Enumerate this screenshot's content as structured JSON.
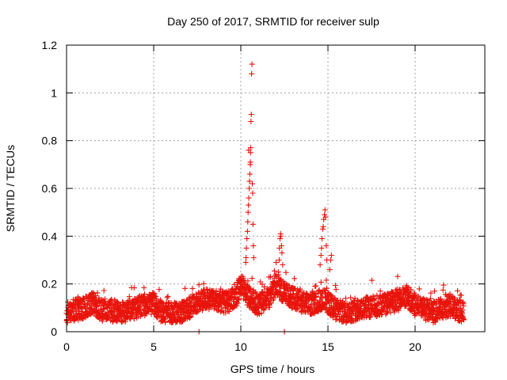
{
  "chart_data": {
    "type": "scatter",
    "title": "Day 250 of 2017, SRMTID for receiver sulp",
    "xlabel": "GPS time / hours",
    "ylabel": "SRMTID / TECUs",
    "xlim": [
      0,
      24
    ],
    "ylim": [
      0,
      1.2
    ],
    "x_ticks": [
      0,
      5,
      10,
      15,
      20
    ],
    "x_tick_labels": [
      "0",
      "5",
      "10",
      "15",
      "20"
    ],
    "y_ticks": [
      0,
      0.2,
      0.4,
      0.6,
      0.8,
      1,
      1.2
    ],
    "y_tick_labels": [
      "0",
      "0.2",
      "0.4",
      "0.6",
      "0.8",
      "1",
      "1.2"
    ],
    "grid": true,
    "marker": "+",
    "color": "#e8140c",
    "series": [
      {
        "name": "SRMTID",
        "baseline_profile": [
          [
            0,
            0.08
          ],
          [
            0.5,
            0.09
          ],
          [
            1,
            0.1
          ],
          [
            1.5,
            0.12
          ],
          [
            2,
            0.09
          ],
          [
            3,
            0.08
          ],
          [
            4,
            0.1
          ],
          [
            5,
            0.12
          ],
          [
            5.5,
            0.08
          ],
          [
            6.5,
            0.08
          ],
          [
            7,
            0.1
          ],
          [
            7.5,
            0.12
          ],
          [
            8,
            0.14
          ],
          [
            9,
            0.12
          ],
          [
            9.7,
            0.14
          ],
          [
            10,
            0.2
          ],
          [
            10.3,
            0.16
          ],
          [
            11,
            0.11
          ],
          [
            11.7,
            0.15
          ],
          [
            12,
            0.2
          ],
          [
            12.5,
            0.16
          ],
          [
            13,
            0.14
          ],
          [
            14,
            0.11
          ],
          [
            14.7,
            0.14
          ],
          [
            15,
            0.12
          ],
          [
            15.5,
            0.09
          ],
          [
            16,
            0.08
          ],
          [
            17,
            0.1
          ],
          [
            18,
            0.11
          ],
          [
            19,
            0.13
          ],
          [
            19.5,
            0.15
          ],
          [
            20,
            0.11
          ],
          [
            21,
            0.08
          ],
          [
            22,
            0.11
          ],
          [
            22.5,
            0.09
          ],
          [
            22.8,
            0.08
          ]
        ],
        "peaks": [
          {
            "x": 10.28,
            "y": 0.29
          },
          {
            "x": 10.3,
            "y": 0.31
          },
          {
            "x": 10.32,
            "y": 0.35
          },
          {
            "x": 10.35,
            "y": 0.39
          },
          {
            "x": 10.38,
            "y": 0.42
          },
          {
            "x": 10.4,
            "y": 0.46
          },
          {
            "x": 10.42,
            "y": 0.5
          },
          {
            "x": 10.44,
            "y": 0.53
          },
          {
            "x": 10.46,
            "y": 0.56
          },
          {
            "x": 10.48,
            "y": 0.6
          },
          {
            "x": 10.5,
            "y": 0.63
          },
          {
            "x": 10.52,
            "y": 0.66
          },
          {
            "x": 10.54,
            "y": 0.7
          },
          {
            "x": 10.55,
            "y": 0.71
          },
          {
            "x": 10.56,
            "y": 0.75
          },
          {
            "x": 10.57,
            "y": 0.77
          },
          {
            "x": 10.58,
            "y": 0.88
          },
          {
            "x": 10.6,
            "y": 0.91
          },
          {
            "x": 10.62,
            "y": 1.08
          },
          {
            "x": 10.64,
            "y": 1.12
          },
          {
            "x": 10.66,
            "y": 0.62
          },
          {
            "x": 10.68,
            "y": 0.58
          },
          {
            "x": 10.7,
            "y": 0.45
          },
          {
            "x": 10.72,
            "y": 0.36
          },
          {
            "x": 10.74,
            "y": 0.31
          },
          {
            "x": 10.45,
            "y": 0.76
          },
          {
            "x": 12.15,
            "y": 0.25
          },
          {
            "x": 12.2,
            "y": 0.3
          },
          {
            "x": 12.22,
            "y": 0.35
          },
          {
            "x": 12.25,
            "y": 0.39
          },
          {
            "x": 12.28,
            "y": 0.41
          },
          {
            "x": 12.3,
            "y": 0.4
          },
          {
            "x": 12.33,
            "y": 0.36
          },
          {
            "x": 12.36,
            "y": 0.33
          },
          {
            "x": 12.4,
            "y": 0.28
          },
          {
            "x": 14.55,
            "y": 0.28
          },
          {
            "x": 14.6,
            "y": 0.32
          },
          {
            "x": 14.63,
            "y": 0.35
          },
          {
            "x": 14.66,
            "y": 0.39
          },
          {
            "x": 14.7,
            "y": 0.43
          },
          {
            "x": 14.73,
            "y": 0.44
          },
          {
            "x": 14.76,
            "y": 0.47
          },
          {
            "x": 14.8,
            "y": 0.49
          },
          {
            "x": 14.83,
            "y": 0.51
          },
          {
            "x": 14.86,
            "y": 0.48
          },
          {
            "x": 14.9,
            "y": 0.36
          },
          {
            "x": 14.93,
            "y": 0.3
          },
          {
            "x": 15.1,
            "y": 0.26
          },
          {
            "x": 15.15,
            "y": 0.3
          },
          {
            "x": 15.2,
            "y": 0.32
          },
          {
            "x": 7.6,
            "y": 0.0
          },
          {
            "x": 12.5,
            "y": 0.0
          }
        ]
      }
    ]
  }
}
